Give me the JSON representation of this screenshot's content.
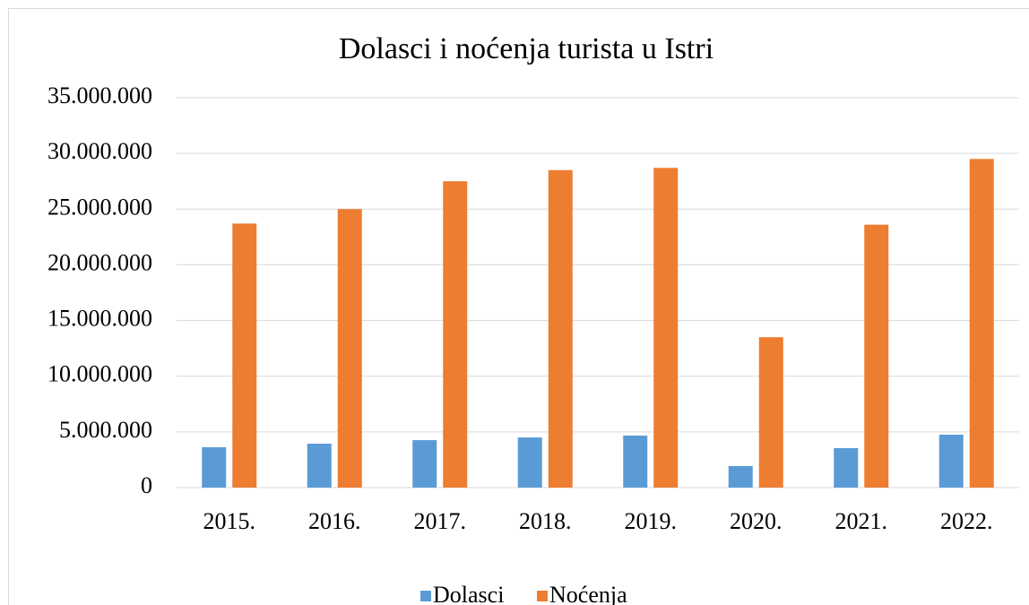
{
  "chart_data": {
    "type": "bar",
    "title": "Dolasci i noćenja turista u Istri",
    "categories": [
      "2015.",
      "2016.",
      "2017.",
      "2018.",
      "2019.",
      "2020.",
      "2021.",
      "2022."
    ],
    "series": [
      {
        "name": "Dolasci",
        "color": "#5b9bd5",
        "values": [
          3620000,
          3940000,
          4260000,
          4500000,
          4670000,
          1930000,
          3540000,
          4750000
        ]
      },
      {
        "name": "Noćenja",
        "color": "#ed7d31",
        "values": [
          23700000,
          25000000,
          27500000,
          28500000,
          28700000,
          13500000,
          23600000,
          29500000
        ]
      }
    ],
    "ylim": [
      0,
      35000000
    ],
    "yticks": [
      0,
      {
        "value": 5000000,
        "label": "5.000.000"
      },
      {
        "value": 10000000,
        "label": "10.000.000"
      },
      {
        "value": 15000000,
        "label": "15.000.000"
      },
      {
        "value": 20000000,
        "label": "20.000.000"
      },
      {
        "value": 25000000,
        "label": "25.000.000"
      },
      {
        "value": 30000000,
        "label": "30.000.000"
      },
      {
        "value": 35000000,
        "label": "35.000.000"
      }
    ],
    "grid": true,
    "legend": "bottom"
  }
}
